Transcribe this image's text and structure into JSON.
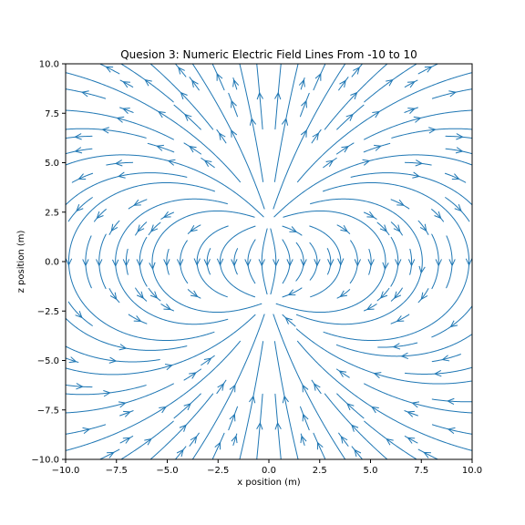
{
  "chart_data": {
    "type": "streamplot",
    "title": "Quesion 3: Numeric Electric Field Lines From -10 to 10",
    "xlabel": "x position (m)",
    "ylabel": "z position (m)",
    "xlim": [
      -10,
      10
    ],
    "ylim": [
      -10,
      10
    ],
    "x_ticks": [
      -10,
      -7.5,
      -5,
      -2.5,
      0,
      2.5,
      5,
      7.5,
      10
    ],
    "y_ticks": [
      -10,
      -7.5,
      -5,
      -2.5,
      0,
      2.5,
      5,
      7.5,
      10
    ],
    "x_tick_labels": [
      "−10.0",
      "−7.5",
      "−5.0",
      "−2.5",
      "0.0",
      "2.5",
      "5.0",
      "7.5",
      "10.0"
    ],
    "y_tick_labels": [
      "−10.0",
      "−7.5",
      "−5.0",
      "−2.5",
      "0.0",
      "2.5",
      "5.0",
      "7.5",
      "10.0"
    ],
    "grid": false,
    "line_color": "#1f77b4",
    "field_sources": [
      {
        "x": 0,
        "z": 2.0,
        "strength": 1
      },
      {
        "x": 0,
        "z": -2.0,
        "strength": -1
      }
    ]
  }
}
